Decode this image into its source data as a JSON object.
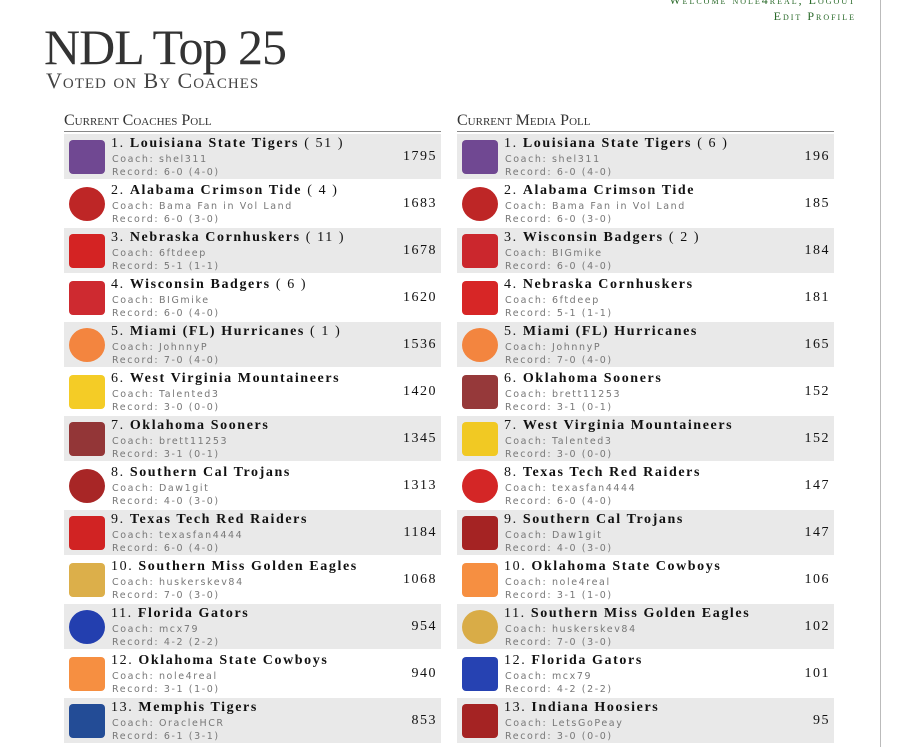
{
  "header": {
    "welcome": "Welcome nole4real, Logout",
    "edit_profile": "Edit Profile",
    "title": "NDL Top 25",
    "subtitle": "Voted on By Coaches"
  },
  "labels": {
    "coach": "Coach:",
    "record": "Record:"
  },
  "polls": [
    {
      "title": "Current Coaches Poll",
      "rows": [
        {
          "rank": "1.",
          "team": "Louisiana State Tigers",
          "votes": "( 51 )",
          "coach": "shel311",
          "record": "6-0 (4-0)",
          "points": 1795
        },
        {
          "rank": "2.",
          "team": "Alabama Crimson Tide",
          "votes": "( 4 )",
          "coach": "Bama Fan in Vol Land",
          "record": "6-0 (3-0)",
          "points": 1683
        },
        {
          "rank": "3.",
          "team": "Nebraska Cornhuskers",
          "votes": "( 11 )",
          "coach": "6ftdeep",
          "record": "5-1 (1-1)",
          "points": 1678
        },
        {
          "rank": "4.",
          "team": "Wisconsin Badgers",
          "votes": "( 6 )",
          "coach": "BIGmike",
          "record": "6-0 (4-0)",
          "points": 1620
        },
        {
          "rank": "5.",
          "team": "Miami (FL) Hurricanes",
          "votes": "( 1 )",
          "coach": "JohnnyP",
          "record": "7-0 (4-0)",
          "points": 1536
        },
        {
          "rank": "6.",
          "team": "West Virginia Mountaineers",
          "votes": null,
          "coach": "Talented3",
          "record": "3-0 (0-0)",
          "points": 1420
        },
        {
          "rank": "7.",
          "team": "Oklahoma Sooners",
          "votes": null,
          "coach": "brett11253",
          "record": "3-1 (0-1)",
          "points": 1345
        },
        {
          "rank": "8.",
          "team": "Southern Cal Trojans",
          "votes": null,
          "coach": "Daw1git",
          "record": "4-0 (3-0)",
          "points": 1313
        },
        {
          "rank": "9.",
          "team": "Texas Tech Red Raiders",
          "votes": null,
          "coach": "texasfan4444",
          "record": "6-0 (4-0)",
          "points": 1184
        },
        {
          "rank": "10.",
          "team": "Southern Miss Golden Eagles",
          "votes": null,
          "coach": "huskerskev84",
          "record": "7-0 (3-0)",
          "points": 1068
        },
        {
          "rank": "11.",
          "team": "Florida Gators",
          "votes": null,
          "coach": "mcx79",
          "record": "4-2 (2-2)",
          "points": 954
        },
        {
          "rank": "12.",
          "team": "Oklahoma State Cowboys",
          "votes": null,
          "coach": "nole4real",
          "record": "3-1 (1-0)",
          "points": 940
        },
        {
          "rank": "13.",
          "team": "Memphis Tigers",
          "votes": null,
          "coach": "OracleHCR",
          "record": "6-1 (3-1)",
          "points": 853
        }
      ]
    },
    {
      "title": "Current Media Poll",
      "rows": [
        {
          "rank": "1.",
          "team": "Louisiana State Tigers",
          "votes": "( 6 )",
          "coach": "shel311",
          "record": "6-0 (4-0)",
          "points": 196
        },
        {
          "rank": "2.",
          "team": "Alabama Crimson Tide",
          "votes": null,
          "coach": "Bama Fan in Vol Land",
          "record": "6-0 (3-0)",
          "points": 185
        },
        {
          "rank": "3.",
          "team": "Wisconsin Badgers",
          "votes": "( 2 )",
          "coach": "BIGmike",
          "record": "6-0 (4-0)",
          "points": 184
        },
        {
          "rank": "4.",
          "team": "Nebraska Cornhuskers",
          "votes": null,
          "coach": "6ftdeep",
          "record": "5-1 (1-1)",
          "points": 181
        },
        {
          "rank": "5.",
          "team": "Miami (FL) Hurricanes",
          "votes": null,
          "coach": "JohnnyP",
          "record": "7-0 (4-0)",
          "points": 165
        },
        {
          "rank": "6.",
          "team": "Oklahoma Sooners",
          "votes": null,
          "coach": "brett11253",
          "record": "3-1 (0-1)",
          "points": 152
        },
        {
          "rank": "7.",
          "team": "West Virginia Mountaineers",
          "votes": null,
          "coach": "Talented3",
          "record": "3-0 (0-0)",
          "points": 152
        },
        {
          "rank": "8.",
          "team": "Texas Tech Red Raiders",
          "votes": null,
          "coach": "texasfan4444",
          "record": "6-0 (4-0)",
          "points": 147
        },
        {
          "rank": "9.",
          "team": "Southern Cal Trojans",
          "votes": null,
          "coach": "Daw1git",
          "record": "4-0 (3-0)",
          "points": 147
        },
        {
          "rank": "10.",
          "team": "Oklahoma State Cowboys",
          "votes": null,
          "coach": "nole4real",
          "record": "3-1 (1-0)",
          "points": 106
        },
        {
          "rank": "11.",
          "team": "Southern Miss Golden Eagles",
          "votes": null,
          "coach": "huskerskev84",
          "record": "7-0 (3-0)",
          "points": 102
        },
        {
          "rank": "12.",
          "team": "Florida Gators",
          "votes": null,
          "coach": "mcx79",
          "record": "4-2 (2-2)",
          "points": 101
        },
        {
          "rank": "13.",
          "team": "Indiana Hoosiers",
          "votes": null,
          "coach": "LetsGoPeay",
          "record": "3-0 (0-0)",
          "points": 95
        }
      ]
    }
  ]
}
